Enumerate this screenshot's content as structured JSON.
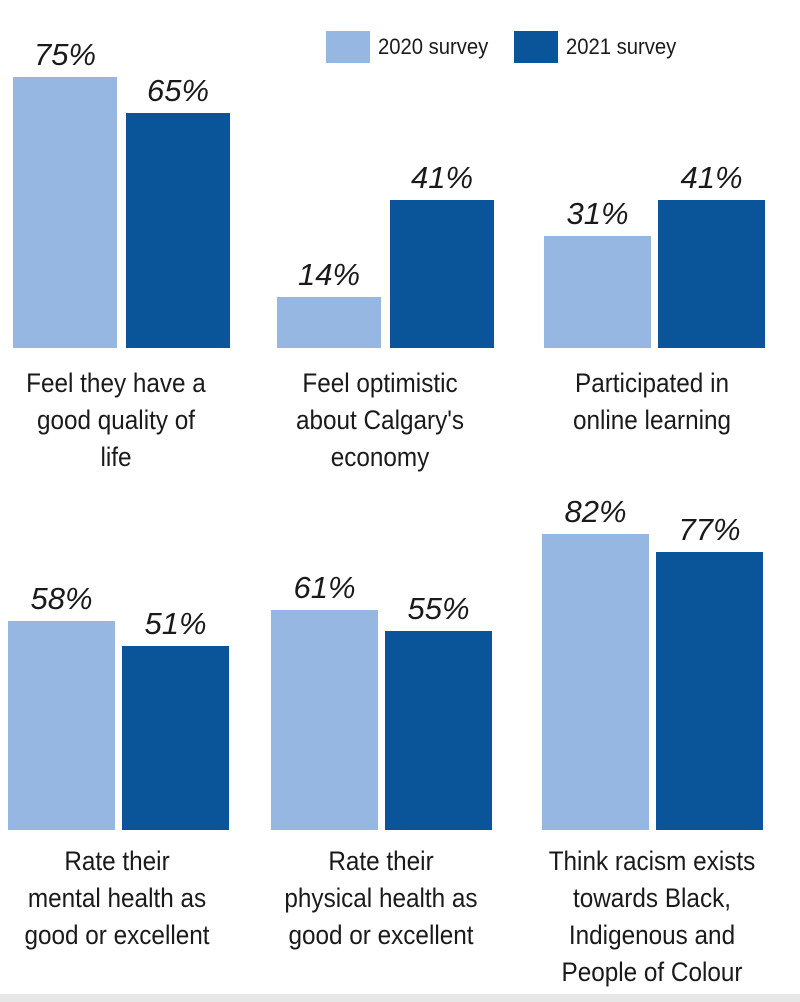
{
  "colors": {
    "series_2020": "#97b7e3",
    "series_2021": "#0a5599"
  },
  "legend": [
    {
      "label": "2020 survey",
      "color": "#97b7e3"
    },
    {
      "label": "2021 survey",
      "color": "#0a5599"
    }
  ],
  "chart_data": [
    {
      "type": "bar",
      "category_lines": [
        "Feel they have a",
        "good quality of",
        "life"
      ],
      "series": [
        {
          "name": "2020 survey",
          "values": [
            75
          ],
          "labels": [
            "75%"
          ]
        },
        {
          "name": "2021 survey",
          "values": [
            65
          ],
          "labels": [
            "65%"
          ]
        }
      ]
    },
    {
      "type": "bar",
      "category_lines": [
        "Feel optimistic",
        "about Calgary's",
        "economy"
      ],
      "series": [
        {
          "name": "2020 survey",
          "values": [
            14
          ],
          "labels": [
            "14%"
          ]
        },
        {
          "name": "2021 survey",
          "values": [
            41
          ],
          "labels": [
            "41%"
          ]
        }
      ]
    },
    {
      "type": "bar",
      "category_lines": [
        "Participated in",
        "online learning"
      ],
      "series": [
        {
          "name": "2020 survey",
          "values": [
            31
          ],
          "labels": [
            "31%"
          ]
        },
        {
          "name": "2021 survey",
          "values": [
            41
          ],
          "labels": [
            "41%"
          ]
        }
      ]
    },
    {
      "type": "bar",
      "category_lines": [
        "Rate their",
        "mental health as",
        "good or excellent"
      ],
      "series": [
        {
          "name": "2020 survey",
          "values": [
            58
          ],
          "labels": [
            "58%"
          ]
        },
        {
          "name": "2021 survey",
          "values": [
            51
          ],
          "labels": [
            "51%"
          ]
        }
      ]
    },
    {
      "type": "bar",
      "category_lines": [
        "Rate their",
        "physical health as",
        "good or excellent"
      ],
      "series": [
        {
          "name": "2020 survey",
          "values": [
            61
          ],
          "labels": [
            "61%"
          ]
        },
        {
          "name": "2021 survey",
          "values": [
            55
          ],
          "labels": [
            "55%"
          ]
        }
      ]
    },
    {
      "type": "bar",
      "category_lines": [
        "Think racism exists",
        "towards Black,",
        "Indigenous and",
        "People of Colour"
      ],
      "series": [
        {
          "name": "2020 survey",
          "values": [
            82
          ],
          "labels": [
            "82%"
          ]
        },
        {
          "name": "2021 survey",
          "values": [
            77
          ],
          "labels": [
            "77%"
          ]
        }
      ]
    }
  ]
}
